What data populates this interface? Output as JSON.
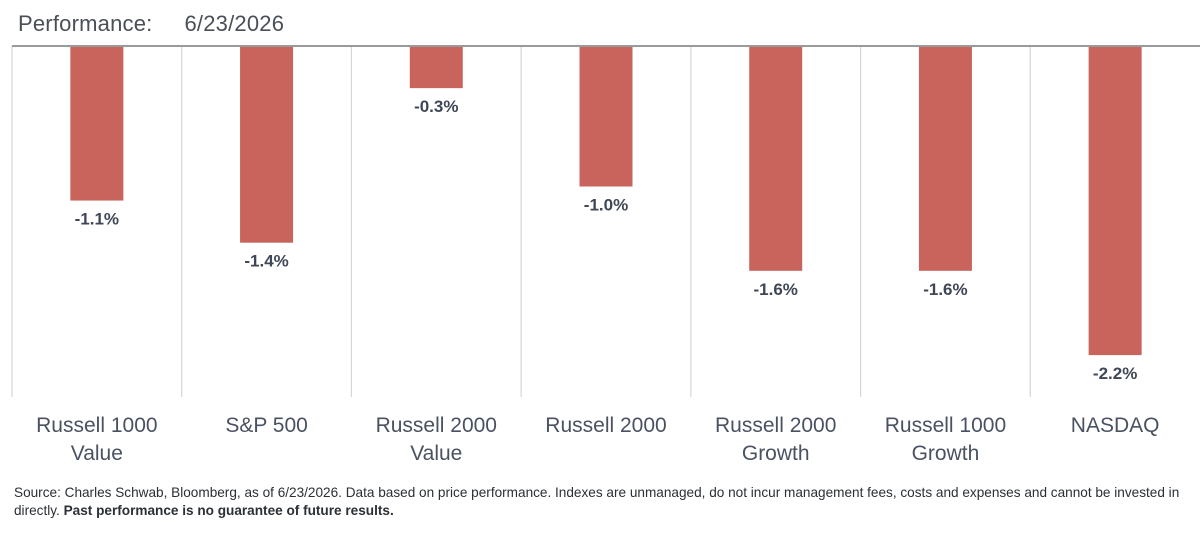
{
  "header": {
    "label": "Performance:",
    "date": "6/23/2026"
  },
  "chart_data": {
    "type": "bar",
    "orientation": "vertical",
    "categories": [
      [
        "Russell 1000",
        "Value"
      ],
      [
        "S&P 500"
      ],
      [
        "Russell 2000",
        "Value"
      ],
      [
        "Russell 2000"
      ],
      [
        "Russell 2000",
        "Growth"
      ],
      [
        "Russell 1000",
        "Growth"
      ],
      [
        "NASDAQ"
      ]
    ],
    "values": [
      -1.1,
      -1.4,
      -0.3,
      -1.0,
      -1.6,
      -1.6,
      -2.2
    ],
    "data_labels": [
      "-1.1%",
      "-1.4%",
      "-0.3%",
      "-1.0%",
      "-1.6%",
      "-1.6%",
      "-2.2%"
    ],
    "units": "%",
    "ylim": [
      -2.5,
      0
    ],
    "grid": false,
    "legend": "none",
    "bar_color": "#c8645c",
    "axis_color": "#9a9a9a",
    "separator_color": "#d6d6d6"
  },
  "footnote": {
    "text": "Source: Charles Schwab, Bloomberg, as of 6/23/2026.  Data based on price performance. Indexes are unmanaged, do not incur management fees, costs and expenses and cannot be invested in directly. ",
    "bold_text": "Past performance is no guarantee of future results."
  }
}
